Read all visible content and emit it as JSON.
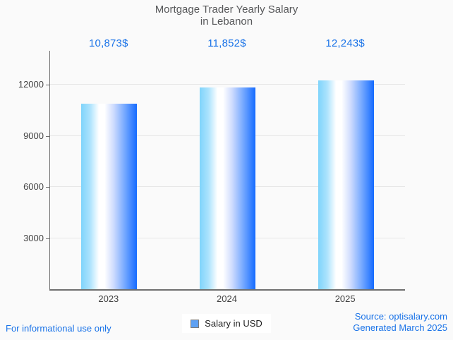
{
  "title": {
    "line1": "Mortgage Trader Yearly Salary",
    "line2": "in Lebanon"
  },
  "chart_data": {
    "type": "bar",
    "title": "Mortgage Trader Yearly Salary in Lebanon",
    "categories": [
      "2023",
      "2024",
      "2025"
    ],
    "values": [
      10873,
      11852,
      12243
    ],
    "value_labels": [
      "10,873$",
      "11,852$",
      "12,243$"
    ],
    "series": [
      {
        "name": "Salary in USD",
        "values": [
          10873,
          11852,
          12243
        ]
      }
    ],
    "xlabel": "",
    "ylabel": "",
    "yticks": [
      3000,
      6000,
      9000,
      12000
    ],
    "ylim": [
      0,
      14000
    ],
    "grid": true,
    "legend_position": "bottom"
  },
  "legend": {
    "label": "Salary in USD",
    "swatch_fill": "#5ea1f4",
    "swatch_border": "#7a7a7a"
  },
  "footer": {
    "left": "For informational use only",
    "source": "Source: optisalary.com",
    "generated": "Generated March 2025"
  },
  "colors": {
    "accent_blue": "#1a73e8",
    "bar_gradient_left": "#7fd4fb",
    "bar_gradient_mid": "#ffffff",
    "bar_gradient_right": "#156bff",
    "title_gray": "#57585a",
    "axis_gray": "#6f6f6f",
    "background": "#fafafa"
  }
}
